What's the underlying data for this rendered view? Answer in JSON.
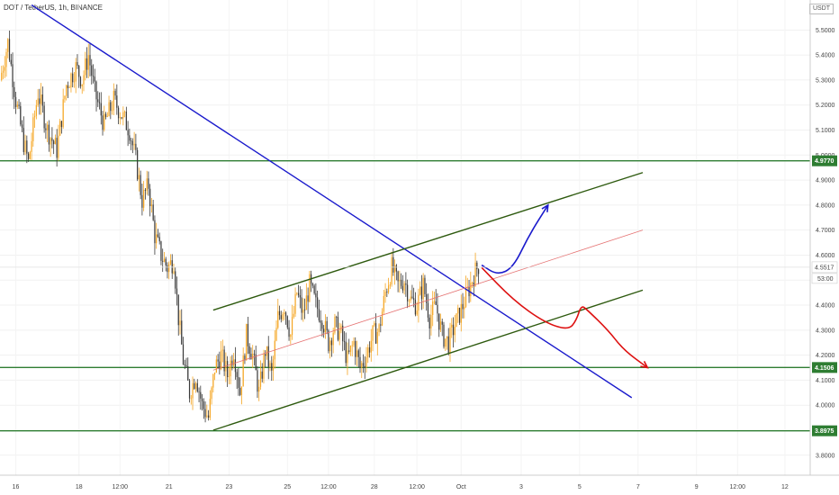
{
  "header": {
    "title": "DOT / TetherUS, 1h, BINANCE",
    "currency": "USDT"
  },
  "chart_data": {
    "type": "candlestick",
    "title": "DOT / TetherUS, 1h, BINANCE",
    "ylim": [
      3.72,
      5.62
    ],
    "y_ticks": [
      3.8,
      3.9,
      4.0,
      4.1,
      4.2,
      4.3,
      4.4,
      4.5,
      4.6,
      4.7,
      4.8,
      4.9,
      5.0,
      5.1,
      5.2,
      5.3,
      5.4,
      5.5
    ],
    "y_tick_labels": [
      "3.8000",
      "3.9000",
      "4.0000",
      "4.1000",
      "4.2000",
      "4.3000",
      "4.4000",
      "4.5000",
      "4.6000",
      "4.7000",
      "4.8000",
      "4.9000",
      "5.0000",
      "5.1000",
      "5.2000",
      "5.3000",
      "5.4000",
      "5.5000"
    ],
    "x_ticks": [
      {
        "label": "16",
        "idx": 10
      },
      {
        "label": "18",
        "idx": 50
      },
      {
        "label": "12:00",
        "idx": 76
      },
      {
        "label": "21",
        "idx": 107
      },
      {
        "label": "23",
        "idx": 145
      },
      {
        "label": "25",
        "idx": 182
      },
      {
        "label": "12:00",
        "idx": 208
      },
      {
        "label": "28",
        "idx": 237
      },
      {
        "label": "12:00",
        "idx": 264
      },
      {
        "label": "Oct",
        "idx": 292
      },
      {
        "label": "3",
        "idx": 330
      },
      {
        "label": "5",
        "idx": 367
      },
      {
        "label": "7",
        "idx": 404
      },
      {
        "label": "9",
        "idx": 441
      },
      {
        "label": "12:00",
        "idx": 467
      },
      {
        "label": "12",
        "idx": 497
      }
    ],
    "price_path": [
      [
        0,
        5.3
      ],
      [
        5,
        5.45
      ],
      [
        10,
        5.22
      ],
      [
        15,
        5.05
      ],
      [
        18,
        4.97
      ],
      [
        24,
        5.25
      ],
      [
        30,
        5.1
      ],
      [
        36,
        5.02
      ],
      [
        42,
        5.28
      ],
      [
        48,
        5.35
      ],
      [
        52,
        5.3
      ],
      [
        56,
        5.4
      ],
      [
        60,
        5.25
      ],
      [
        66,
        5.12
      ],
      [
        72,
        5.22
      ],
      [
        78,
        5.15
      ],
      [
        82,
        5.1
      ],
      [
        86,
        4.98
      ],
      [
        90,
        4.82
      ],
      [
        94,
        4.88
      ],
      [
        98,
        4.68
      ],
      [
        102,
        4.6
      ],
      [
        106,
        4.55
      ],
      [
        110,
        4.58
      ],
      [
        113,
        4.35
      ],
      [
        116,
        4.18
      ],
      [
        120,
        4.05
      ],
      [
        124,
        4.12
      ],
      [
        128,
        4.0
      ],
      [
        132,
        3.95
      ],
      [
        136,
        4.15
      ],
      [
        140,
        4.2
      ],
      [
        144,
        4.12
      ],
      [
        148,
        4.22
      ],
      [
        152,
        4.05
      ],
      [
        156,
        4.28
      ],
      [
        160,
        4.2
      ],
      [
        164,
        4.05
      ],
      [
        168,
        4.22
      ],
      [
        172,
        4.12
      ],
      [
        176,
        4.35
      ],
      [
        180,
        4.4
      ],
      [
        184,
        4.28
      ],
      [
        188,
        4.45
      ],
      [
        192,
        4.36
      ],
      [
        196,
        4.48
      ],
      [
        200,
        4.4
      ],
      [
        204,
        4.35
      ],
      [
        208,
        4.25
      ],
      [
        212,
        4.32
      ],
      [
        216,
        4.28
      ],
      [
        220,
        4.18
      ],
      [
        224,
        4.25
      ],
      [
        228,
        4.15
      ],
      [
        232,
        4.2
      ],
      [
        236,
        4.28
      ],
      [
        240,
        4.3
      ],
      [
        244,
        4.45
      ],
      [
        248,
        4.55
      ],
      [
        252,
        4.48
      ],
      [
        256,
        4.5
      ],
      [
        260,
        4.42
      ],
      [
        264,
        4.4
      ],
      [
        268,
        4.48
      ],
      [
        272,
        4.35
      ],
      [
        276,
        4.4
      ],
      [
        280,
        4.28
      ],
      [
        284,
        4.25
      ],
      [
        288,
        4.32
      ],
      [
        292,
        4.38
      ],
      [
        296,
        4.45
      ],
      [
        300,
        4.52
      ],
      [
        303,
        4.56
      ]
    ],
    "last_price": 4.5517,
    "countdown": "53:00",
    "horizontal_levels": [
      {
        "price": 4.977,
        "label": "4.9770",
        "color": "#2e7d32"
      },
      {
        "price": 4.1506,
        "label": "4.1506",
        "color": "#2e7d32"
      },
      {
        "price": 3.8975,
        "label": "3.8975",
        "color": "#2e7d32"
      }
    ],
    "trendlines": [
      {
        "name": "descending-trendline",
        "color": "#1a1acc",
        "points": [
          [
            20,
            5.6
          ],
          [
            400,
            4.03
          ]
        ]
      },
      {
        "name": "channel-upper-line",
        "color": "#2e5a0f",
        "points": [
          [
            135,
            4.38
          ],
          [
            407,
            4.93
          ]
        ]
      },
      {
        "name": "channel-lower-line",
        "color": "#2e5a0f",
        "points": [
          [
            135,
            3.9
          ],
          [
            407,
            4.46
          ]
        ]
      },
      {
        "name": "channel-mid-line",
        "color": "#e57373",
        "points": [
          [
            135,
            4.14
          ],
          [
            407,
            4.7
          ]
        ]
      }
    ],
    "projections": [
      {
        "name": "bullish-projection-arrow",
        "color": "#1a1acc",
        "points": [
          [
            305,
            4.56
          ],
          [
            315,
            4.52
          ],
          [
            325,
            4.55
          ],
          [
            335,
            4.68
          ],
          [
            347,
            4.8
          ]
        ]
      },
      {
        "name": "bearish-projection-arrow",
        "color": "#dd1111",
        "points": [
          [
            305,
            4.55
          ],
          [
            325,
            4.42
          ],
          [
            345,
            4.33
          ],
          [
            360,
            4.3
          ],
          [
            365,
            4.34
          ],
          [
            368,
            4.4
          ],
          [
            372,
            4.38
          ],
          [
            385,
            4.3
          ],
          [
            395,
            4.22
          ],
          [
            410,
            4.15
          ]
        ]
      }
    ]
  }
}
